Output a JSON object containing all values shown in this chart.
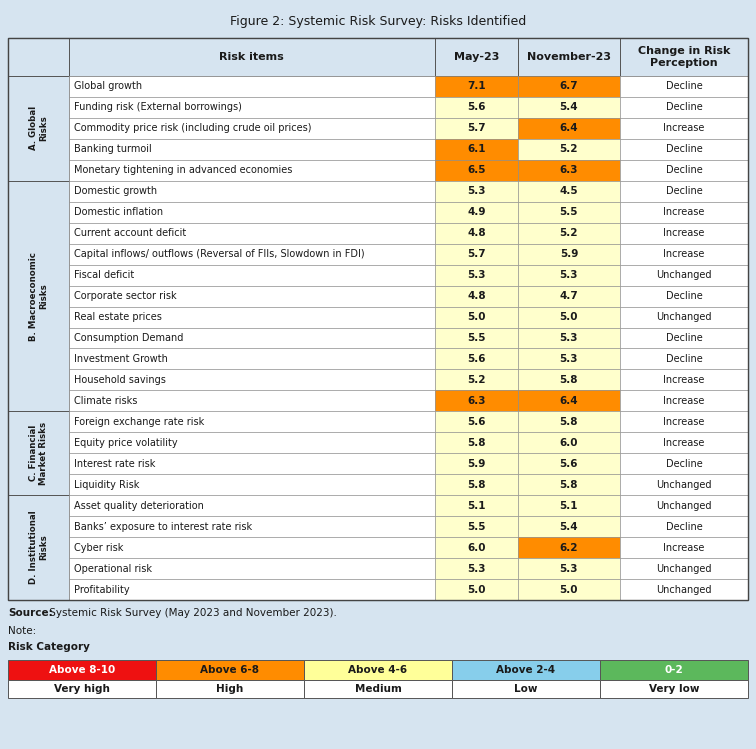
{
  "title": "Figure 2: Systemic Risk Survey: Risks Identified",
  "source_bold": "Source:",
  "source_rest": " Systemic Risk Survey (May 2023 and November 2023).",
  "note": "Note:",
  "risk_category_label": "Risk Category",
  "categories": [
    {
      "section": "A. Global\nRisks",
      "items": [
        {
          "name": "Global growth",
          "may": 7.1,
          "nov": 6.7,
          "change": "Decline",
          "may_color": "#FF8C00",
          "nov_color": "#FF8C00"
        },
        {
          "name": "Funding risk (External borrowings)",
          "may": 5.6,
          "nov": 5.4,
          "change": "Decline",
          "may_color": "#FFFFCC",
          "nov_color": "#FFFFCC"
        },
        {
          "name": "Commodity price risk (including crude oil prices)",
          "may": 5.7,
          "nov": 6.4,
          "change": "Increase",
          "may_color": "#FFFFCC",
          "nov_color": "#FF8C00"
        },
        {
          "name": "Banking turmoil",
          "may": 6.1,
          "nov": 5.2,
          "change": "Decline",
          "may_color": "#FF8C00",
          "nov_color": "#FFFFCC"
        },
        {
          "name": "Monetary tightening in advanced economies",
          "may": 6.5,
          "nov": 6.3,
          "change": "Decline",
          "may_color": "#FF8C00",
          "nov_color": "#FF8C00"
        }
      ]
    },
    {
      "section": "B. Macroeconomic\nRisks",
      "items": [
        {
          "name": "Domestic growth",
          "may": 5.3,
          "nov": 4.5,
          "change": "Decline",
          "may_color": "#FFFFCC",
          "nov_color": "#FFFFCC"
        },
        {
          "name": "Domestic inflation",
          "may": 4.9,
          "nov": 5.5,
          "change": "Increase",
          "may_color": "#FFFFCC",
          "nov_color": "#FFFFCC"
        },
        {
          "name": "Current account deficit",
          "may": 4.8,
          "nov": 5.2,
          "change": "Increase",
          "may_color": "#FFFFCC",
          "nov_color": "#FFFFCC"
        },
        {
          "name": "Capital inflows/ outflows (Reversal of FIIs, Slowdown in FDI)",
          "may": 5.7,
          "nov": 5.9,
          "change": "Increase",
          "may_color": "#FFFFCC",
          "nov_color": "#FFFFCC"
        },
        {
          "name": "Fiscal deficit",
          "may": 5.3,
          "nov": 5.3,
          "change": "Unchanged",
          "may_color": "#FFFFCC",
          "nov_color": "#FFFFCC"
        },
        {
          "name": "Corporate sector risk",
          "may": 4.8,
          "nov": 4.7,
          "change": "Decline",
          "may_color": "#FFFFCC",
          "nov_color": "#FFFFCC"
        },
        {
          "name": "Real estate prices",
          "may": 5.0,
          "nov": 5.0,
          "change": "Unchanged",
          "may_color": "#FFFFCC",
          "nov_color": "#FFFFCC"
        },
        {
          "name": "Consumption Demand",
          "may": 5.5,
          "nov": 5.3,
          "change": "Decline",
          "may_color": "#FFFFCC",
          "nov_color": "#FFFFCC"
        },
        {
          "name": "Investment Growth",
          "may": 5.6,
          "nov": 5.3,
          "change": "Decline",
          "may_color": "#FFFFCC",
          "nov_color": "#FFFFCC"
        },
        {
          "name": "Household savings",
          "may": 5.2,
          "nov": 5.8,
          "change": "Increase",
          "may_color": "#FFFFCC",
          "nov_color": "#FFFFCC"
        },
        {
          "name": "Climate risks",
          "may": 6.3,
          "nov": 6.4,
          "change": "Increase",
          "may_color": "#FF8C00",
          "nov_color": "#FF8C00"
        }
      ]
    },
    {
      "section": "C. Financial\nMarket Risks",
      "items": [
        {
          "name": "Foreign exchange rate risk",
          "may": 5.6,
          "nov": 5.8,
          "change": "Increase",
          "may_color": "#FFFFCC",
          "nov_color": "#FFFFCC"
        },
        {
          "name": "Equity price volatility",
          "may": 5.8,
          "nov": 6.0,
          "change": "Increase",
          "may_color": "#FFFFCC",
          "nov_color": "#FFFFCC"
        },
        {
          "name": "Interest rate risk",
          "may": 5.9,
          "nov": 5.6,
          "change": "Decline",
          "may_color": "#FFFFCC",
          "nov_color": "#FFFFCC"
        },
        {
          "name": "Liquidity Risk",
          "may": 5.8,
          "nov": 5.8,
          "change": "Unchanged",
          "may_color": "#FFFFCC",
          "nov_color": "#FFFFCC"
        }
      ]
    },
    {
      "section": "D. Institutional\nRisks",
      "items": [
        {
          "name": "Asset quality deterioration",
          "may": 5.1,
          "nov": 5.1,
          "change": "Unchanged",
          "may_color": "#FFFFCC",
          "nov_color": "#FFFFCC"
        },
        {
          "name": "Banks’ exposure to interest rate risk",
          "may": 5.5,
          "nov": 5.4,
          "change": "Decline",
          "may_color": "#FFFFCC",
          "nov_color": "#FFFFCC"
        },
        {
          "name": "Cyber risk",
          "may": 6.0,
          "nov": 6.2,
          "change": "Increase",
          "may_color": "#FFFFCC",
          "nov_color": "#FF8C00"
        },
        {
          "name": "Operational risk",
          "may": 5.3,
          "nov": 5.3,
          "change": "Unchanged",
          "may_color": "#FFFFCC",
          "nov_color": "#FFFFCC"
        },
        {
          "name": "Profitability",
          "may": 5.0,
          "nov": 5.0,
          "change": "Unchanged",
          "may_color": "#FFFFCC",
          "nov_color": "#FFFFCC"
        }
      ]
    }
  ],
  "legend_colors": [
    "#EE1111",
    "#FF8C00",
    "#FFFF99",
    "#87CEEB",
    "#5CB85C"
  ],
  "legend_labels_top": [
    "Above 8-10",
    "Above 6-8",
    "Above 4-6",
    "Above 2-4",
    "0-2"
  ],
  "legend_labels_bot": [
    "Very high",
    "High",
    "Medium",
    "Low",
    "Very low"
  ],
  "bg_color": "#D6E4F0",
  "header_bg": "#D6E4F0",
  "section_bg": "#D6E4F0",
  "cell_yellow": "#FFFFCC",
  "cell_orange": "#FF8C00",
  "cell_white": "#FFFFFF"
}
